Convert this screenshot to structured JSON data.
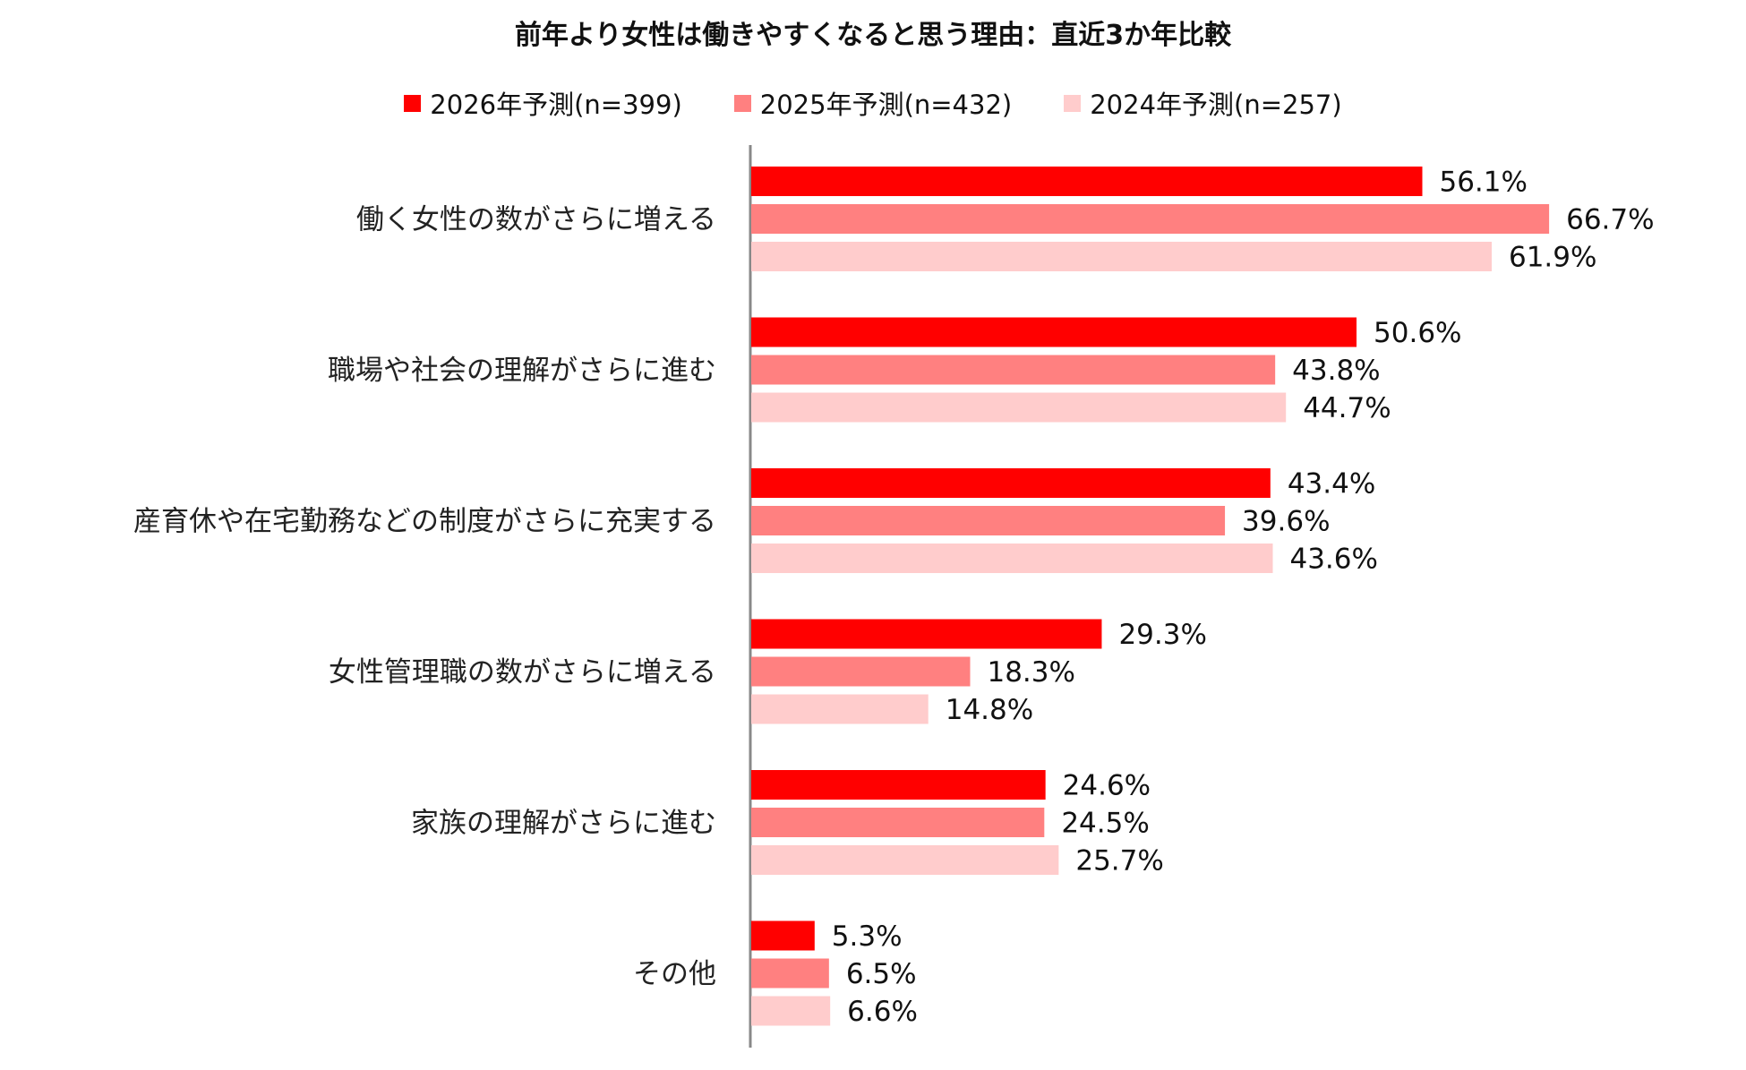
{
  "chart_data": {
    "type": "bar",
    "orientation": "horizontal",
    "title": "前年より女性は働きやすくなると思う理由：直近3か年比較",
    "categories": [
      "働く女性の数がさらに増える",
      "職場や社会の理解がさらに進む",
      "産育休や在宅勤務などの制度がさらに充実する",
      "女性管理職の数がさらに増える",
      "家族の理解がさらに進む",
      "その他"
    ],
    "series": [
      {
        "name": "2026年予測(n=399)",
        "color": "#ff0000",
        "values": [
          56.1,
          50.6,
          43.4,
          29.3,
          24.6,
          5.3
        ],
        "labels": [
          "56.1%",
          "50.6%",
          "43.4%",
          "29.3%",
          "24.6%",
          "5.3%"
        ]
      },
      {
        "name": "2025年予測(n=432)",
        "color": "#ff8080",
        "values": [
          66.7,
          43.8,
          39.6,
          18.3,
          24.5,
          6.5
        ],
        "labels": [
          "66.7%",
          "43.8%",
          "39.6%",
          "18.3%",
          "24.5%",
          "6.5%"
        ]
      },
      {
        "name": "2024年予測(n=257)",
        "color": "#ffcccc",
        "values": [
          61.9,
          44.7,
          43.6,
          14.8,
          25.7,
          6.6
        ],
        "labels": [
          "61.9%",
          "44.7%",
          "43.6%",
          "14.8%",
          "25.7%",
          "6.6%"
        ]
      }
    ],
    "xlim": [
      0,
      100
    ],
    "legend_position": "top-center",
    "grid": false
  }
}
